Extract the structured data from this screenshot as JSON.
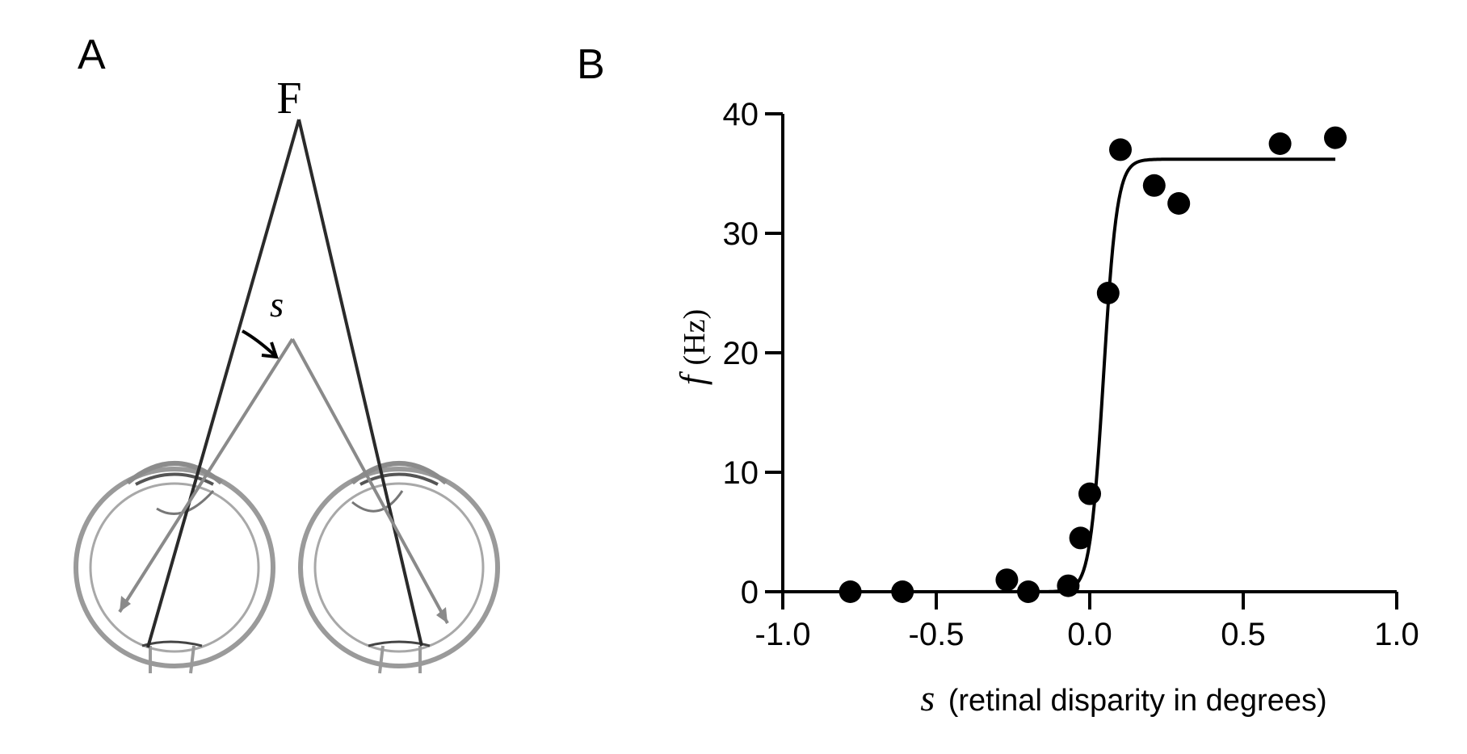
{
  "panels": {
    "a": {
      "label": "A",
      "fixation_label": "F",
      "disparity_label": "s"
    },
    "b": {
      "label": "B",
      "y_symbol": "f",
      "y_unit": "(Hz)",
      "x_symbol": "s",
      "x_unit": "(retinal disparity in degrees)"
    }
  },
  "colors": {
    "ink": "#000000",
    "eye_gray": "#8a8a8a",
    "eye_dark": "#3a3a3a"
  },
  "chart_data": {
    "type": "scatter",
    "title": "",
    "xlabel": "s (retinal disparity in degrees)",
    "ylabel": "f (Hz)",
    "xlim": [
      -1.0,
      1.0
    ],
    "ylim": [
      0,
      40
    ],
    "x_ticks": [
      -1.0,
      -0.5,
      0.0,
      0.5,
      1.0
    ],
    "x_tick_labels": [
      "-1.0",
      "-0.5",
      "0.0",
      "0.5",
      "1.0"
    ],
    "y_ticks": [
      0,
      10,
      20,
      30,
      40
    ],
    "y_tick_labels": [
      "0",
      "10",
      "20",
      "30",
      "40"
    ],
    "grid": false,
    "points": [
      {
        "x": -0.78,
        "y": 0.0
      },
      {
        "x": -0.61,
        "y": 0.0
      },
      {
        "x": -0.27,
        "y": 1.0
      },
      {
        "x": -0.2,
        "y": 0.0
      },
      {
        "x": -0.07,
        "y": 0.5
      },
      {
        "x": -0.03,
        "y": 4.5
      },
      {
        "x": 0.0,
        "y": 8.2
      },
      {
        "x": 0.06,
        "y": 25.0
      },
      {
        "x": 0.1,
        "y": 37.0
      },
      {
        "x": 0.21,
        "y": 34.0
      },
      {
        "x": 0.29,
        "y": 32.5
      },
      {
        "x": 0.62,
        "y": 37.5
      },
      {
        "x": 0.8,
        "y": 38.0
      }
    ],
    "fit_curve": {
      "type": "sigmoid",
      "plateau": 36.2,
      "midpoint": 0.045,
      "slope": 0.022,
      "x_range": [
        -0.15,
        0.8
      ]
    }
  }
}
